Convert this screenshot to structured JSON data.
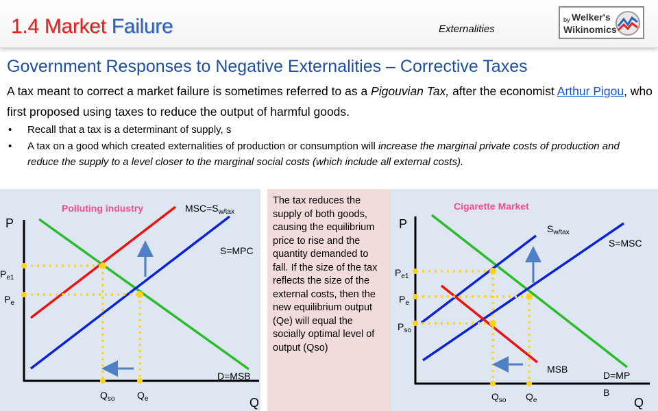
{
  "header": {
    "title_part1": "1.4 Market",
    "title_part2": "Failure",
    "topic": "Externalities",
    "logo": {
      "by": "by",
      "line1": "Welker's",
      "line2": "Wikinomics"
    }
  },
  "heading": "Government Responses to Negative Externalities – Corrective Taxes",
  "intro": {
    "text1": "A tax meant to correct a market failure is sometimes referred to as a ",
    "italic": "Pigouvian Tax,",
    "text2": " after the economist ",
    "link": "Arthur Pigou",
    "text3": ", who first proposed using taxes to reduce the output of harmful goods."
  },
  "bullets": [
    {
      "text": "Recall that a tax is a determinant of supply, s",
      "italic": "",
      "rest": ""
    },
    {
      "text": "A tax on a good which created externalities of production or consumption will ",
      "italic": "increase the marginal private costs of production and reduce the supply to a level closer to the marginal social costs (which include all external costs).",
      "rest": ""
    }
  ],
  "middle_note": "The tax reduces the supply of both goods, causing the equilibrium price to rise and the quantity demanded to fall. If the size of the tax reflects the size of the external costs, then the new equilibrium output (Qe) will equal the socially optimal level of output (Qso)",
  "graph_left": {
    "title": "Polluting industry",
    "y_axis": "P",
    "x_axis": "Q",
    "curve_msc": "MSC=S",
    "curve_msc_sub": "w/tax",
    "curve_smpc": "S=MPC",
    "curve_d": "D=MSB",
    "price_high": "P",
    "price_high_sub": "e1",
    "price_low": "P",
    "price_low_sub": "e",
    "qty_so": "Q",
    "qty_so_sub": "so",
    "qty_e": "Q",
    "qty_e_sub": "e"
  },
  "graph_right": {
    "title": "Cigarette Market",
    "y_axis": "P",
    "x_axis": "Q",
    "curve_sw": "S",
    "curve_sw_sub": "w/tax",
    "curve_smsc": "S=MSC",
    "curve_msb": "MSB",
    "curve_d_line1": "D=MP",
    "curve_d_line2": "B",
    "price_high": "P",
    "price_high_sub": "e1",
    "price_mid": "P",
    "price_mid_sub": "e",
    "price_low": "P",
    "price_low_sub": "so",
    "qty_so": "Q",
    "qty_so_sub": "so",
    "qty_e": "Q",
    "qty_e_sub": "e"
  },
  "colors": {
    "title_red": "#e32222",
    "title_blue": "#2a63b8",
    "heading_blue": "#1f4e9c",
    "panel_bg": "#dde6f1",
    "note_bg": "#f2dcdb",
    "green": "#2bbb2b",
    "blue": "#0a23d6",
    "red": "#ee1111",
    "dots": "#ffd21e",
    "arrow": "#4f7fc4"
  }
}
